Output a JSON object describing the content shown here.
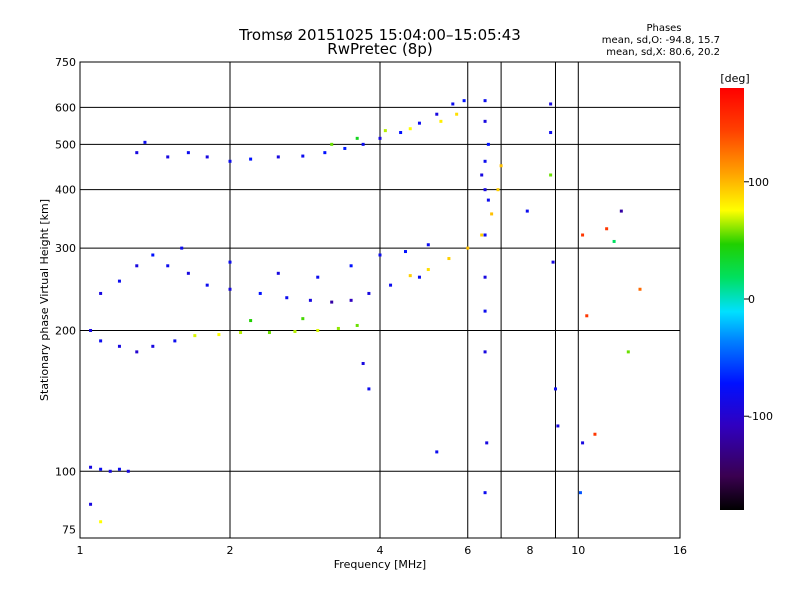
{
  "chart_data": {
    "type": "scatter",
    "title": "Tromsø 20151025 15:04:00–15:05:43",
    "subtitle": "RwPretec (8p)",
    "corner_text": {
      "heading": "Phases",
      "line1": "mean, sd,O: -94.8, 15.7",
      "line2": "mean, sd,X:  80.6, 20.2"
    },
    "xlabel": "Frequency [MHz]",
    "ylabel": "Stationary phase Virtual Height [km]",
    "x_scale": "log",
    "y_scale": "log",
    "xlim": [
      1,
      16
    ],
    "ylim": [
      72,
      750
    ],
    "x_ticks": [
      1,
      2,
      4,
      6,
      8,
      10,
      16
    ],
    "x_tick_labels": [
      "1",
      "2",
      "4",
      "6",
      "8",
      "10",
      "16"
    ],
    "x_grid": [
      2,
      4,
      6,
      7,
      9,
      10
    ],
    "y_ticks": [
      75,
      100,
      200,
      300,
      400,
      500,
      600,
      750
    ],
    "y_tick_labels": [
      "75",
      "100",
      "200",
      "300",
      "400",
      "500",
      "600",
      "750"
    ],
    "y_grid": [
      100,
      200,
      300,
      400,
      500,
      600
    ],
    "grid": true,
    "colorbar": {
      "label": "[deg]",
      "range": [
        -180,
        180
      ],
      "ticks": [
        100,
        0,
        -100
      ],
      "tick_labels": [
        "100",
        "0",
        "-100"
      ]
    },
    "series": [
      {
        "trace": "upper-layer",
        "points": [
          [
            1.3,
            480,
            -100
          ],
          [
            1.35,
            505,
            -95
          ],
          [
            1.5,
            470,
            -100
          ],
          [
            1.65,
            480,
            -95
          ],
          [
            1.8,
            470,
            -100
          ],
          [
            2.0,
            460,
            -95
          ],
          [
            2.2,
            465,
            -90
          ],
          [
            2.5,
            470,
            -100
          ],
          [
            2.8,
            472,
            -95
          ],
          [
            3.1,
            480,
            -90
          ],
          [
            3.4,
            490,
            -85
          ],
          [
            3.7,
            500,
            -95
          ],
          [
            4.0,
            515,
            -100
          ],
          [
            4.4,
            530,
            -90
          ],
          [
            4.8,
            555,
            -95
          ],
          [
            5.2,
            580,
            -100
          ],
          [
            5.6,
            610,
            -95
          ],
          [
            5.9,
            620,
            -90
          ],
          [
            4.6,
            540,
            80
          ],
          [
            5.3,
            560,
            85
          ],
          [
            5.7,
            580,
            90
          ],
          [
            3.2,
            500,
            60
          ],
          [
            3.6,
            515,
            40
          ],
          [
            4.1,
            535,
            70
          ]
        ]
      },
      {
        "trace": "middle-layer",
        "points": [
          [
            1.1,
            240,
            -100
          ],
          [
            1.2,
            255,
            -95
          ],
          [
            1.3,
            275,
            -100
          ],
          [
            1.4,
            290,
            -90
          ],
          [
            1.5,
            275,
            -95
          ],
          [
            1.65,
            265,
            -100
          ],
          [
            1.8,
            250,
            -95
          ],
          [
            2.0,
            245,
            -100
          ],
          [
            2.3,
            240,
            -90
          ],
          [
            2.6,
            235,
            -95
          ],
          [
            2.9,
            232,
            -100
          ],
          [
            3.2,
            230,
            -120
          ],
          [
            3.5,
            232,
            -110
          ],
          [
            3.8,
            240,
            -100
          ],
          [
            4.2,
            250,
            -95
          ],
          [
            4.6,
            262,
            95
          ],
          [
            5.0,
            270,
            90
          ],
          [
            5.5,
            285,
            95
          ],
          [
            6.0,
            300,
            100
          ],
          [
            6.4,
            320,
            95
          ],
          [
            6.7,
            355,
            100
          ],
          [
            6.9,
            400,
            95
          ],
          [
            7.0,
            450,
            100
          ],
          [
            1.6,
            300,
            -95
          ],
          [
            2.0,
            280,
            -95
          ],
          [
            2.5,
            265,
            -100
          ],
          [
            3.0,
            260,
            -95
          ],
          [
            3.5,
            275,
            -90
          ],
          [
            4.0,
            290,
            -95
          ],
          [
            4.5,
            295,
            -90
          ],
          [
            5.0,
            305,
            -95
          ]
        ]
      },
      {
        "trace": "lower-layer",
        "points": [
          [
            1.05,
            200,
            -100
          ],
          [
            1.1,
            190,
            -95
          ],
          [
            1.2,
            185,
            -100
          ],
          [
            1.3,
            180,
            -105
          ],
          [
            1.4,
            185,
            -100
          ],
          [
            1.55,
            190,
            -95
          ],
          [
            1.7,
            195,
            75
          ],
          [
            1.9,
            196,
            80
          ],
          [
            2.1,
            198,
            70
          ],
          [
            2.4,
            198,
            60
          ],
          [
            2.7,
            199,
            70
          ],
          [
            3.0,
            200,
            75
          ],
          [
            3.3,
            202,
            65
          ],
          [
            3.6,
            205,
            60
          ],
          [
            2.2,
            210,
            50
          ],
          [
            2.8,
            212,
            55
          ]
        ]
      },
      {
        "trace": "vertical-streak",
        "points": [
          [
            6.5,
            180,
            -100
          ],
          [
            6.5,
            220,
            -95
          ],
          [
            6.5,
            260,
            -100
          ],
          [
            6.5,
            320,
            -95
          ],
          [
            6.5,
            400,
            -100
          ],
          [
            6.5,
            460,
            -95
          ],
          [
            6.5,
            560,
            -100
          ],
          [
            6.5,
            620,
            -95
          ],
          [
            6.6,
            500,
            -90
          ],
          [
            6.6,
            380,
            -95
          ],
          [
            6.4,
            430,
            -100
          ],
          [
            6.55,
            115,
            -100
          ],
          [
            6.5,
            90,
            -95
          ]
        ]
      },
      {
        "trace": "low-cluster",
        "points": [
          [
            1.05,
            102,
            -100
          ],
          [
            1.1,
            101,
            -95
          ],
          [
            1.15,
            100,
            -100
          ],
          [
            1.2,
            101,
            -95
          ],
          [
            1.25,
            100,
            -100
          ],
          [
            1.05,
            85,
            -100
          ],
          [
            1.1,
            78,
            80
          ]
        ]
      },
      {
        "trace": "scattered",
        "points": [
          [
            8.8,
            610,
            -100
          ],
          [
            8.8,
            530,
            -95
          ],
          [
            8.8,
            430,
            60
          ],
          [
            7.9,
            360,
            -95
          ],
          [
            8.9,
            280,
            -100
          ],
          [
            9.0,
            150,
            -95
          ],
          [
            9.1,
            125,
            -100
          ],
          [
            10.2,
            115,
            -100
          ],
          [
            10.2,
            320,
            150
          ],
          [
            10.4,
            215,
            150
          ],
          [
            10.8,
            120,
            150
          ],
          [
            11.4,
            330,
            150
          ],
          [
            11.8,
            310,
            20
          ],
          [
            12.2,
            360,
            -120
          ],
          [
            12.6,
            180,
            60
          ],
          [
            13.3,
            245,
            130
          ],
          [
            10.1,
            90,
            -60
          ],
          [
            5.2,
            110,
            -95
          ],
          [
            4.8,
            260,
            -95
          ],
          [
            3.7,
            170,
            -100
          ],
          [
            3.8,
            150,
            -95
          ]
        ]
      }
    ]
  }
}
